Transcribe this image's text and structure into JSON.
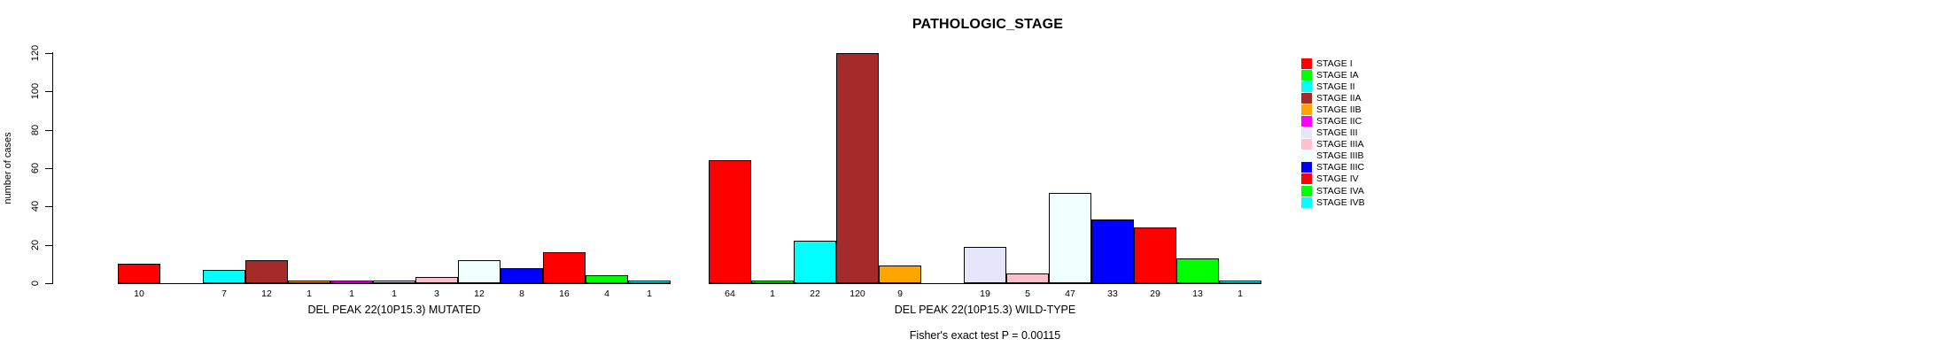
{
  "title": "PATHOLOGIC_STAGE",
  "footer": "Fisher's exact test P = 0.00115",
  "chart_data": {
    "type": "bar",
    "title": "PATHOLOGIC_STAGE",
    "ylabel": "number of cases",
    "ylim": [
      0,
      120
    ],
    "yticks": [
      0,
      20,
      40,
      60,
      80,
      100,
      120
    ],
    "grid": false,
    "legend_position": "right",
    "bar_border_color": "#000000",
    "categories": [
      "STAGE I",
      "STAGE IA",
      "STAGE II",
      "STAGE IIA",
      "STAGE IIB",
      "STAGE IIC",
      "STAGE III",
      "STAGE IIIA",
      "STAGE IIIB",
      "STAGE IIIC",
      "STAGE IV",
      "STAGE IVA",
      "STAGE IVB"
    ],
    "colors": [
      "#FF0000",
      "#00FF00",
      "#00FFFF",
      "#A52A2A",
      "#FFA500",
      "#FF00FF",
      "#E6E6FA",
      "#FFC0CB",
      "#F0FFFF",
      "#0000FF",
      "#FF0000",
      "#00FF00",
      "#00FFFF"
    ],
    "groups": [
      {
        "label": "DEL PEAK 22(10P15.3) MUTATED",
        "values": [
          10,
          0,
          7,
          12,
          1,
          1,
          1,
          3,
          12,
          8,
          16,
          4,
          1
        ]
      },
      {
        "label": "DEL PEAK 22(10P15.3) WILD-TYPE",
        "values": [
          64,
          1,
          22,
          120,
          9,
          0,
          19,
          5,
          47,
          33,
          29,
          13,
          1
        ]
      }
    ],
    "annotation": "Fisher's exact test P = 0.00115"
  }
}
